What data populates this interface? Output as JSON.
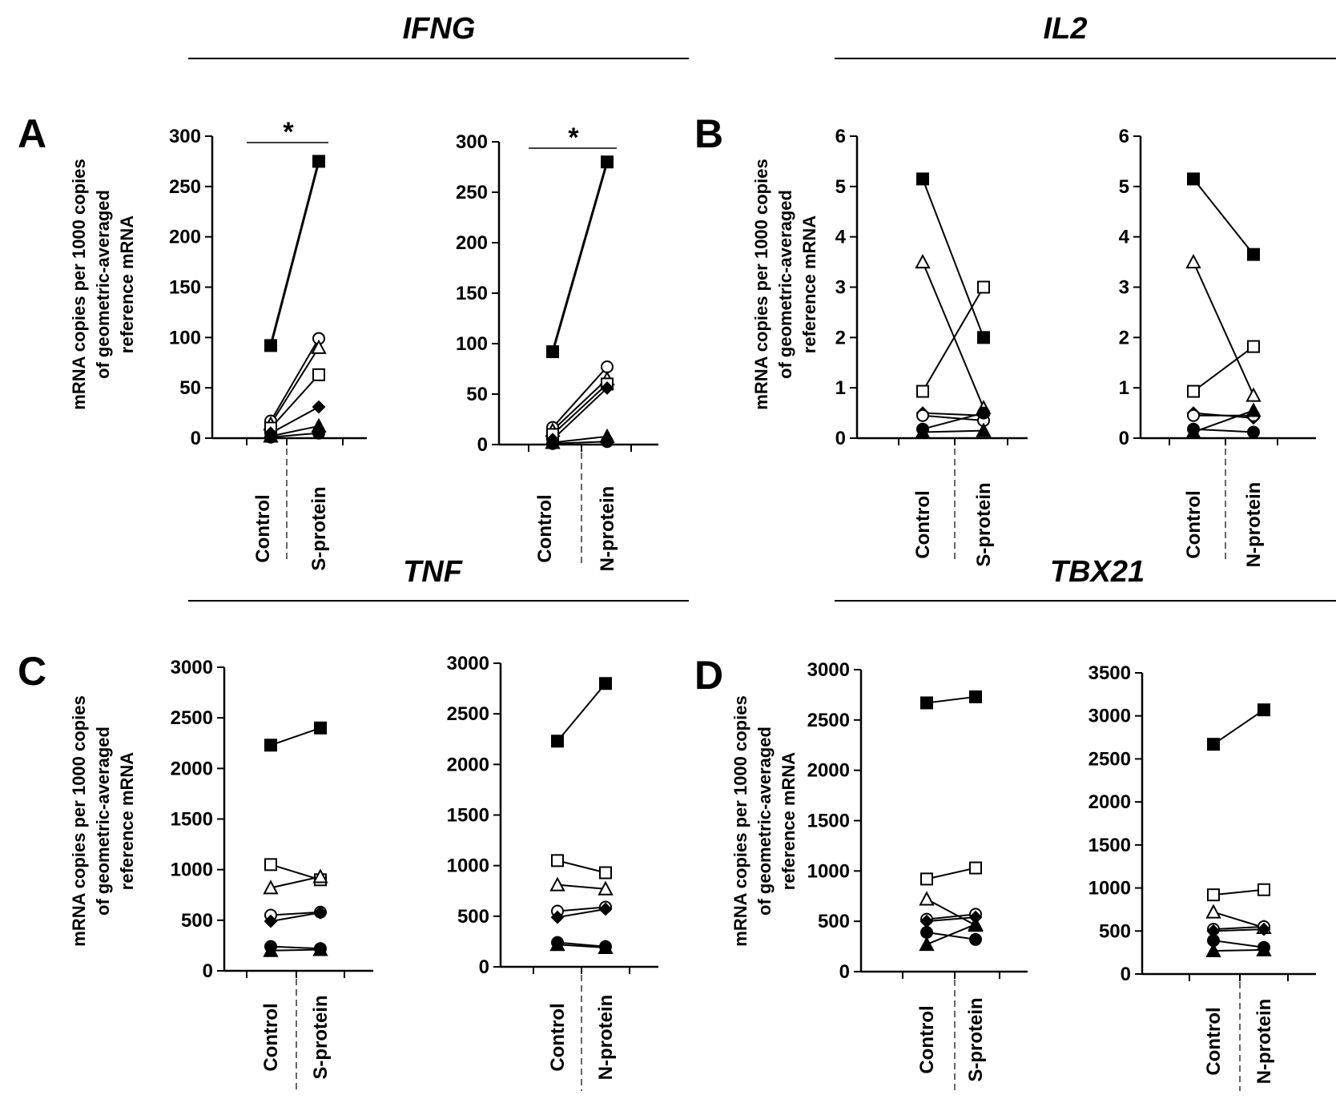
{
  "figure": {
    "gene_headers": [
      "IFNG",
      "IL2",
      "TNF",
      "TBX21"
    ],
    "panel_labels": [
      "A",
      "B",
      "C",
      "D"
    ],
    "ylabel_lines": [
      "mRNA copies per 1000 copies",
      "of geometric-averaged",
      "reference mRNA"
    ],
    "significance_marker": "*"
  },
  "chart_data": [
    {
      "type": "line",
      "title": "IFNG",
      "categories": [
        "Control",
        "S-protein"
      ],
      "ylim": [
        0,
        300
      ],
      "yticks": [
        0,
        50,
        100,
        150,
        200,
        250,
        300
      ],
      "significance": "*",
      "series": [
        {
          "name": "filled-square",
          "values": [
            92,
            275
          ]
        },
        {
          "name": "open-circle",
          "values": [
            17,
            99
          ]
        },
        {
          "name": "open-triangle",
          "values": [
            14,
            90
          ]
        },
        {
          "name": "open-square",
          "values": [
            10,
            63
          ]
        },
        {
          "name": "filled-diamond",
          "values": [
            5,
            31
          ]
        },
        {
          "name": "filled-triangle",
          "values": [
            2,
            12
          ]
        },
        {
          "name": "filled-circle",
          "values": [
            1,
            5
          ]
        }
      ]
    },
    {
      "type": "line",
      "title": "IFNG",
      "categories": [
        "Control",
        "N-protein"
      ],
      "ylim": [
        0,
        300
      ],
      "yticks": [
        0,
        50,
        100,
        150,
        200,
        250,
        300
      ],
      "significance": "*",
      "series": [
        {
          "name": "filled-square",
          "values": [
            92,
            280
          ]
        },
        {
          "name": "open-circle",
          "values": [
            17,
            77
          ]
        },
        {
          "name": "open-triangle",
          "values": [
            14,
            65
          ]
        },
        {
          "name": "open-square",
          "values": [
            10,
            60
          ]
        },
        {
          "name": "filled-diamond",
          "values": [
            5,
            56
          ]
        },
        {
          "name": "filled-triangle",
          "values": [
            2,
            8
          ]
        },
        {
          "name": "filled-circle",
          "values": [
            1,
            3
          ]
        }
      ]
    },
    {
      "type": "line",
      "title": "IL2",
      "categories": [
        "Control",
        "S-protein"
      ],
      "ylim": [
        0,
        6
      ],
      "yticks": [
        0,
        1,
        2,
        3,
        4,
        5,
        6
      ],
      "series": [
        {
          "name": "filled-square",
          "values": [
            5.15,
            2.0
          ]
        },
        {
          "name": "open-triangle",
          "values": [
            3.5,
            0.6
          ]
        },
        {
          "name": "open-square",
          "values": [
            0.93,
            3.0
          ]
        },
        {
          "name": "filled-diamond",
          "values": [
            0.5,
            0.45
          ]
        },
        {
          "name": "open-circle",
          "values": [
            0.45,
            0.35
          ]
        },
        {
          "name": "filled-circle",
          "values": [
            0.18,
            0.5
          ]
        },
        {
          "name": "filled-triangle",
          "values": [
            0.12,
            0.15
          ]
        }
      ]
    },
    {
      "type": "line",
      "title": "IL2",
      "categories": [
        "Control",
        "N-protein"
      ],
      "ylim": [
        0,
        6
      ],
      "yticks": [
        0,
        1,
        2,
        3,
        4,
        5,
        6
      ],
      "series": [
        {
          "name": "filled-square",
          "values": [
            5.15,
            3.65
          ]
        },
        {
          "name": "open-triangle",
          "values": [
            3.5,
            0.85
          ]
        },
        {
          "name": "open-square",
          "values": [
            0.93,
            1.82
          ]
        },
        {
          "name": "filled-diamond",
          "values": [
            0.5,
            0.4
          ]
        },
        {
          "name": "open-circle",
          "values": [
            0.45,
            0.45
          ]
        },
        {
          "name": "filled-circle",
          "values": [
            0.18,
            0.12
          ]
        },
        {
          "name": "filled-triangle",
          "values": [
            0.12,
            0.55
          ]
        }
      ]
    },
    {
      "type": "line",
      "title": "TNF",
      "categories": [
        "Control",
        "S-protein"
      ],
      "ylim": [
        0,
        3000
      ],
      "yticks": [
        0,
        500,
        1000,
        1500,
        2000,
        2500,
        3000
      ],
      "series": [
        {
          "name": "filled-square",
          "values": [
            2230,
            2400
          ]
        },
        {
          "name": "open-square",
          "values": [
            1050,
            900
          ]
        },
        {
          "name": "open-triangle",
          "values": [
            820,
            930
          ]
        },
        {
          "name": "open-circle",
          "values": [
            550,
            580
          ]
        },
        {
          "name": "filled-diamond",
          "values": [
            490,
            575
          ]
        },
        {
          "name": "filled-circle",
          "values": [
            240,
            220
          ]
        },
        {
          "name": "filled-triangle",
          "values": [
            200,
            210
          ]
        }
      ]
    },
    {
      "type": "line",
      "title": "TNF",
      "categories": [
        "Control",
        "N-protein"
      ],
      "ylim": [
        0,
        3000
      ],
      "yticks": [
        0,
        500,
        1000,
        1500,
        2000,
        2500,
        3000
      ],
      "series": [
        {
          "name": "filled-square",
          "values": [
            2230,
            2800
          ]
        },
        {
          "name": "open-square",
          "values": [
            1050,
            930
          ]
        },
        {
          "name": "open-triangle",
          "values": [
            810,
            770
          ]
        },
        {
          "name": "open-circle",
          "values": [
            550,
            590
          ]
        },
        {
          "name": "filled-diamond",
          "values": [
            490,
            570
          ]
        },
        {
          "name": "filled-circle",
          "values": [
            240,
            200
          ]
        },
        {
          "name": "filled-triangle",
          "values": [
            220,
            190
          ]
        }
      ]
    },
    {
      "type": "line",
      "title": "TBX21",
      "categories": [
        "Control",
        "S-protein"
      ],
      "ylim": [
        0,
        3000
      ],
      "yticks": [
        0,
        500,
        1000,
        1500,
        2000,
        2500,
        3000
      ],
      "series": [
        {
          "name": "filled-square",
          "values": [
            2670,
            2730
          ]
        },
        {
          "name": "open-square",
          "values": [
            920,
            1030
          ]
        },
        {
          "name": "open-triangle",
          "values": [
            720,
            460
          ]
        },
        {
          "name": "open-circle",
          "values": [
            520,
            570
          ]
        },
        {
          "name": "filled-diamond",
          "values": [
            500,
            540
          ]
        },
        {
          "name": "filled-circle",
          "values": [
            390,
            320
          ]
        },
        {
          "name": "filled-triangle",
          "values": [
            270,
            470
          ]
        }
      ]
    },
    {
      "type": "line",
      "title": "TBX21",
      "categories": [
        "Control",
        "N-protein"
      ],
      "ylim": [
        0,
        3500
      ],
      "yticks": [
        0,
        500,
        1000,
        1500,
        2000,
        2500,
        3000,
        3500
      ],
      "series": [
        {
          "name": "filled-square",
          "values": [
            2670,
            3070
          ]
        },
        {
          "name": "open-square",
          "values": [
            920,
            980
          ]
        },
        {
          "name": "open-triangle",
          "values": [
            720,
            540
          ]
        },
        {
          "name": "open-circle",
          "values": [
            520,
            550
          ]
        },
        {
          "name": "filled-diamond",
          "values": [
            500,
            520
          ]
        },
        {
          "name": "filled-circle",
          "values": [
            390,
            310
          ]
        },
        {
          "name": "filled-triangle",
          "values": [
            270,
            280
          ]
        }
      ]
    }
  ]
}
